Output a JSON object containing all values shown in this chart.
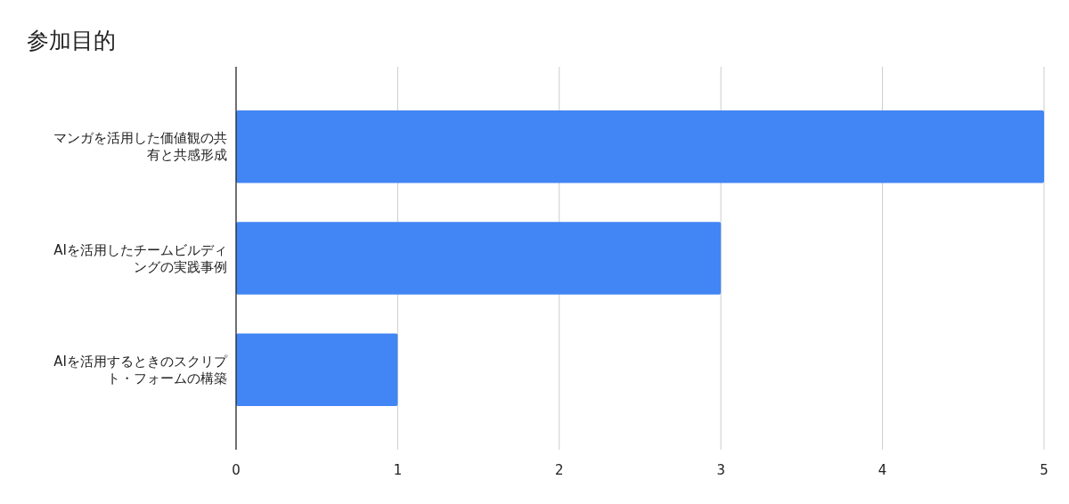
{
  "chart_data": {
    "type": "bar",
    "orientation": "horizontal",
    "title": "参加目的",
    "categories": [
      "マンガを活用した価値観の共有と共感形成",
      "AIを活用したチームビルディングの実践事例",
      "AIを活用するときのスクリプト・フォームの構築"
    ],
    "values": [
      5,
      3,
      1
    ],
    "color": "#4285f4",
    "xlim": [
      0,
      5
    ],
    "xticks": [
      0,
      1,
      2,
      3,
      4,
      5
    ],
    "grid": "x"
  }
}
